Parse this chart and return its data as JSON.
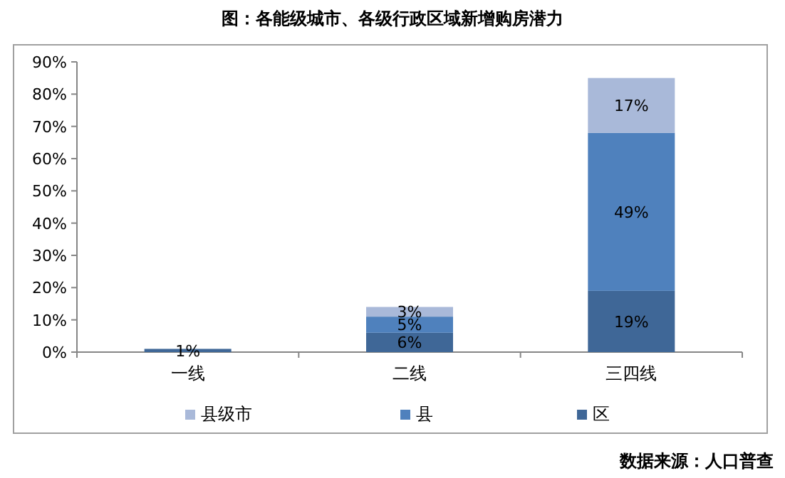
{
  "chart_data": {
    "type": "bar",
    "stacked": true,
    "title": "图：各能级城市、各级行政区域新增购房潜力",
    "categories": [
      "一线",
      "二线",
      "三四线"
    ],
    "series": [
      {
        "name": "区",
        "color": "#3f6797",
        "values": [
          1,
          6,
          19
        ],
        "value_labels": [
          "1%",
          "6%",
          "19%"
        ]
      },
      {
        "name": "县",
        "color": "#4f81bd",
        "values": [
          null,
          5,
          49
        ],
        "value_labels": [
          null,
          "5%",
          "49%"
        ]
      },
      {
        "name": "县级市",
        "color": "#a9b9d9",
        "values": [
          null,
          3,
          17
        ],
        "value_labels": [
          null,
          "3%",
          "17%"
        ]
      }
    ],
    "ylim": [
      0,
      90
    ],
    "yticks": [
      {
        "value": 0,
        "label": "0%"
      },
      {
        "value": 10,
        "label": "10%"
      },
      {
        "value": 20,
        "label": "20%"
      },
      {
        "value": 30,
        "label": "30%"
      },
      {
        "value": 40,
        "label": "40%"
      },
      {
        "value": 50,
        "label": "50%"
      },
      {
        "value": 60,
        "label": "60%"
      },
      {
        "value": 70,
        "label": "70%"
      },
      {
        "value": 80,
        "label": "80%"
      },
      {
        "value": 90,
        "label": "90%"
      }
    ],
    "grid": false,
    "legend": "bottom",
    "annotations": [
      "数据来源：人口普查"
    ]
  }
}
